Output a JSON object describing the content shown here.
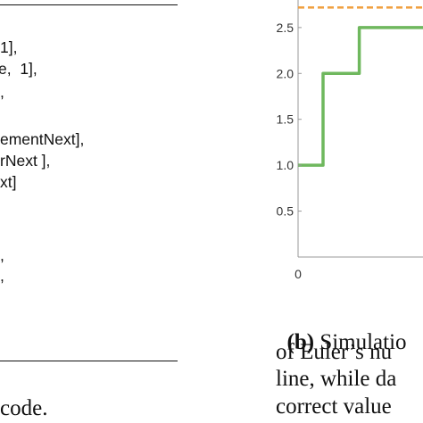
{
  "code": {
    "lines": [
      "1],",
      "e,  1],",
      ",",
      "ementNext],",
      "rNext ],",
      "xt]",
      ",",
      ","
    ]
  },
  "caption_left": "code.",
  "caption_right": {
    "label": "(b)",
    "line1_text": "Simulatio",
    "line2": "of Euler’s nu",
    "line3": "line, while da",
    "line4": "correct value"
  },
  "colors": {
    "series": "#6fb85e",
    "reference": "#f0a040",
    "axis": "#999999",
    "text": "#111111"
  },
  "chart_data": {
    "type": "line",
    "yticks": [
      "0.5",
      "1.0",
      "1.5",
      "2.0",
      "2.5"
    ],
    "xticks": [
      "0"
    ],
    "ylim": [
      0,
      2.8
    ],
    "xlim": [
      0,
      5
    ],
    "series": [
      {
        "x": [
          0,
          1,
          1,
          2.45,
          2.45,
          3.15,
          3.15,
          5
        ],
        "y": [
          1.0,
          1.0,
          2.0,
          2.0,
          2.5,
          2.5,
          2.5,
          2.5
        ]
      }
    ],
    "reference_line": {
      "y": 2.718,
      "style": "dashed"
    }
  }
}
